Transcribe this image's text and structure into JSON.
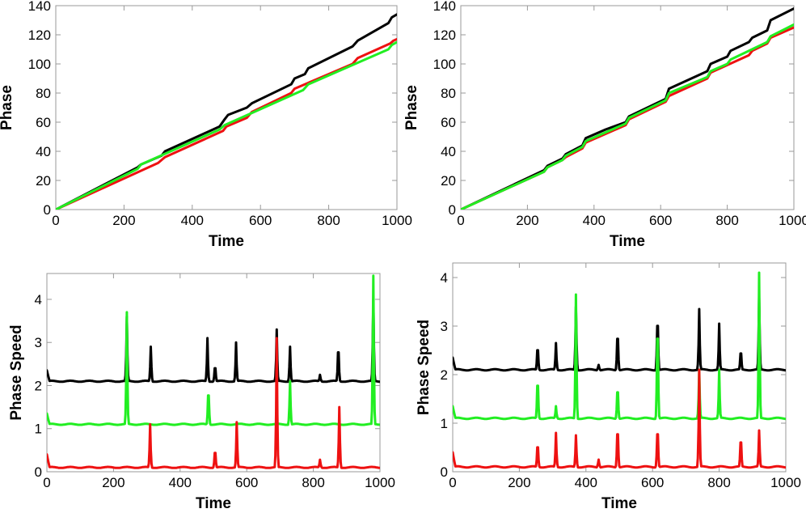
{
  "colors": {
    "black": "#000000",
    "red": "#ee1111",
    "green": "#22ee22",
    "frame": "#999999"
  },
  "chart_data": [
    {
      "type": "line",
      "xlabel": "Time",
      "ylabel": "Phase",
      "xlim": [
        0,
        1000
      ],
      "ylim": [
        0,
        140
      ],
      "xticks": [
        0,
        200,
        400,
        600,
        800,
        1000
      ],
      "yticks": [
        0,
        20,
        40,
        60,
        80,
        100,
        120,
        140
      ],
      "series": [
        {
          "color": "#000000",
          "x": [
            0,
            240,
            250,
            310,
            320,
            480,
            495,
            505,
            560,
            575,
            690,
            700,
            730,
            740,
            870,
            885,
            975,
            985,
            1000
          ],
          "y": [
            0,
            29,
            31,
            37,
            40,
            57,
            62,
            65,
            70,
            73,
            86,
            90,
            93,
            97,
            112,
            116,
            128,
            132,
            134
          ]
        },
        {
          "color": "#ee1111",
          "x": [
            0,
            300,
            315,
            320,
            490,
            500,
            560,
            575,
            690,
            700,
            870,
            885,
            980,
            990,
            1000
          ],
          "y": [
            0,
            32,
            35,
            36,
            54,
            57,
            63,
            67,
            80,
            83,
            100,
            104,
            114,
            116,
            117
          ]
        },
        {
          "color": "#22ee22",
          "x": [
            0,
            240,
            250,
            480,
            495,
            725,
            740,
            975,
            985,
            1000
          ],
          "y": [
            0,
            28,
            31,
            55,
            58,
            82,
            86,
            110,
            113,
            115
          ]
        }
      ]
    },
    {
      "type": "line",
      "xlabel": "Time",
      "ylabel": "Phase",
      "xlim": [
        0,
        1000
      ],
      "ylim": [
        0,
        140
      ],
      "xticks": [
        0,
        200,
        400,
        600,
        800,
        1000
      ],
      "yticks": [
        0,
        20,
        40,
        60,
        80,
        100,
        120,
        140
      ],
      "series": [
        {
          "color": "#000000",
          "x": [
            0,
            250,
            260,
            305,
            315,
            365,
            375,
            435,
            495,
            505,
            615,
            625,
            740,
            750,
            800,
            810,
            865,
            875,
            920,
            930,
            1000
          ],
          "y": [
            0,
            27,
            30,
            35,
            38,
            44,
            49,
            55,
            60,
            64,
            76,
            83,
            95,
            100,
            105,
            109,
            115,
            118,
            123,
            130,
            138
          ]
        },
        {
          "color": "#ee1111",
          "x": [
            0,
            250,
            260,
            305,
            315,
            365,
            375,
            495,
            505,
            615,
            625,
            740,
            750,
            865,
            875,
            920,
            930,
            1000
          ],
          "y": [
            0,
            26,
            29,
            34,
            36,
            42,
            46,
            58,
            62,
            74,
            78,
            90,
            94,
            106,
            109,
            114,
            118,
            125
          ]
        },
        {
          "color": "#22ee22",
          "x": [
            0,
            250,
            260,
            305,
            315,
            365,
            375,
            495,
            505,
            615,
            625,
            740,
            750,
            800,
            810,
            920,
            930,
            1000
          ],
          "y": [
            0,
            26,
            29,
            34,
            37,
            43,
            47,
            59,
            63,
            75,
            80,
            91,
            95,
            100,
            103,
            115,
            119,
            127
          ]
        }
      ]
    },
    {
      "type": "line",
      "xlabel": "Time",
      "ylabel": "Phase Speed",
      "xlim": [
        0,
        1000
      ],
      "ylim": [
        0,
        4.6
      ],
      "xticks": [
        0,
        200,
        400,
        600,
        800,
        1000
      ],
      "yticks": [
        0,
        1,
        2,
        3,
        4
      ],
      "series": [
        {
          "color": "#000000",
          "base": 2.1,
          "start": 2.35,
          "spikes": [
            [
              240,
              3.6
            ],
            [
              312,
              2.9
            ],
            [
              482,
              3.1
            ],
            [
              505,
              2.55
            ],
            [
              568,
              3.0
            ],
            [
              690,
              3.3
            ],
            [
              730,
              2.9
            ],
            [
              820,
              2.25
            ],
            [
              875,
              3.1
            ],
            [
              980,
              4.0
            ]
          ]
        },
        {
          "color": "#22ee22",
          "base": 1.1,
          "start": 1.35,
          "spikes": [
            [
              240,
              3.7
            ],
            [
              485,
              2.1
            ],
            [
              730,
              2.1
            ],
            [
              980,
              4.55
            ]
          ]
        },
        {
          "color": "#ee1111",
          "base": 0.1,
          "start": 0.4,
          "spikes": [
            [
              310,
              1.1
            ],
            [
              505,
              0.6
            ],
            [
              570,
              1.15
            ],
            [
              690,
              3.1
            ],
            [
              820,
              0.28
            ],
            [
              878,
              1.5
            ]
          ]
        }
      ]
    },
    {
      "type": "line",
      "xlabel": "Time",
      "ylabel": "Phase Speed",
      "xlim": [
        0,
        1000
      ],
      "ylim": [
        0,
        4.3
      ],
      "xticks": [
        0,
        200,
        400,
        600,
        800,
        1000
      ],
      "yticks": [
        0,
        1,
        2,
        3,
        4
      ],
      "series": [
        {
          "color": "#000000",
          "base": 2.1,
          "start": 2.35,
          "spikes": [
            [
              255,
              2.7
            ],
            [
              310,
              2.65
            ],
            [
              370,
              3.4
            ],
            [
              438,
              2.2
            ],
            [
              495,
              3.05
            ],
            [
              615,
              3.45
            ],
            [
              740,
              3.35
            ],
            [
              800,
              3.05
            ],
            [
              865,
              2.6
            ],
            [
              920,
              3.6
            ]
          ]
        },
        {
          "color": "#22ee22",
          "base": 1.1,
          "start": 1.35,
          "spikes": [
            [
              255,
              2.1
            ],
            [
              310,
              1.35
            ],
            [
              370,
              3.65
            ],
            [
              495,
              1.9
            ],
            [
              615,
              3.55
            ],
            [
              740,
              2.1
            ],
            [
              800,
              2.1
            ],
            [
              920,
              4.1
            ]
          ]
        },
        {
          "color": "#ee1111",
          "base": 0.1,
          "start": 0.4,
          "spikes": [
            [
              255,
              0.7
            ],
            [
              310,
              0.8
            ],
            [
              370,
              0.75
            ],
            [
              438,
              0.25
            ],
            [
              495,
              1.1
            ],
            [
              615,
              1.1
            ],
            [
              740,
              2.1
            ],
            [
              865,
              0.85
            ],
            [
              920,
              0.85
            ]
          ]
        }
      ]
    }
  ]
}
